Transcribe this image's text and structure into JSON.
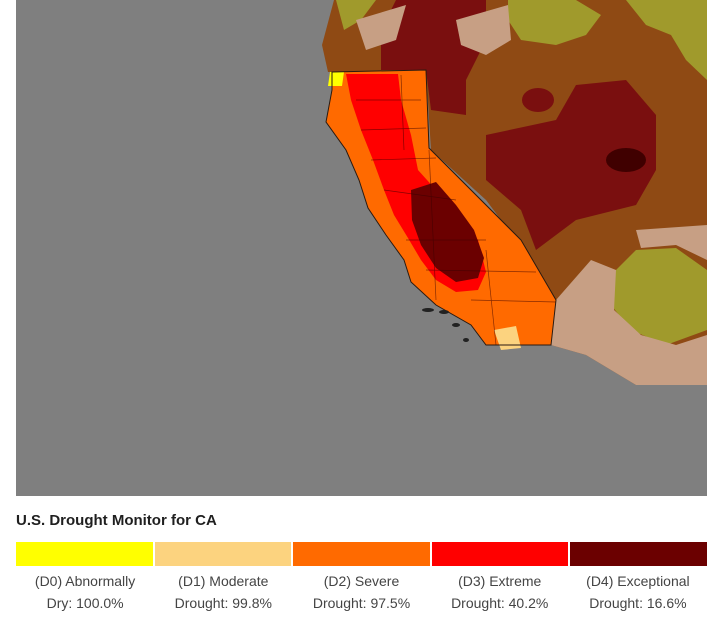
{
  "legend": {
    "title": "U.S. Drought Monitor for CA",
    "items": [
      {
        "code": "D0",
        "line1": "(D0) Abnormally",
        "line2": "Dry: 100.0%",
        "percent": 100.0,
        "color": "#ffff00"
      },
      {
        "code": "D1",
        "line1": "(D1) Moderate",
        "line2": "Drought: 99.8%",
        "percent": 99.8,
        "color": "#fcd37f"
      },
      {
        "code": "D2",
        "line1": "(D2) Severe",
        "line2": "Drought: 97.5%",
        "percent": 97.5,
        "color": "#ff6a00"
      },
      {
        "code": "D3",
        "line1": "(D3) Extreme",
        "line2": "Drought: 40.2%",
        "percent": 40.2,
        "color": "#ff0000"
      },
      {
        "code": "D4",
        "line1": "(D4) Exceptional",
        "line2": "Drought: 16.6%",
        "percent": 16.6,
        "color": "#6b0000"
      }
    ]
  },
  "colors": {
    "ocean": "#7f7f7f",
    "neighbor_d0": "#a09a2c",
    "neighbor_d1": "#c79f84",
    "neighbor_d2": "#8f4a14",
    "neighbor_d3": "#7a0f0f",
    "neighbor_d4": "#400000"
  }
}
